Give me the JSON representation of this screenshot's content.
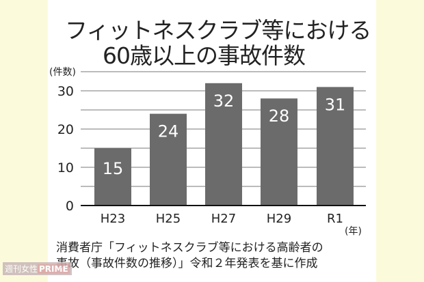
{
  "chart_data": {
    "type": "bar",
    "title": "フィットネスクラブ等における",
    "subtitle": "60歳以上の事故件数",
    "categories": [
      "H23",
      "H25",
      "H27",
      "H29",
      "R1"
    ],
    "values": [
      15,
      24,
      32,
      28,
      31
    ],
    "ylabel": "(件数)",
    "xlabel": "(年)",
    "ylim": [
      0,
      35
    ],
    "yticks": [
      0,
      10,
      20,
      30
    ],
    "grid": true,
    "bar_color": "#6b6b6b"
  },
  "source": {
    "line1": "消費者庁「フィットネスクラブ等における高齢者の",
    "line2": "事故（事故件数の推移）」令和２年発表を基に作成"
  },
  "watermark": {
    "part1": "週刊女性",
    "part2": "PRIME"
  }
}
